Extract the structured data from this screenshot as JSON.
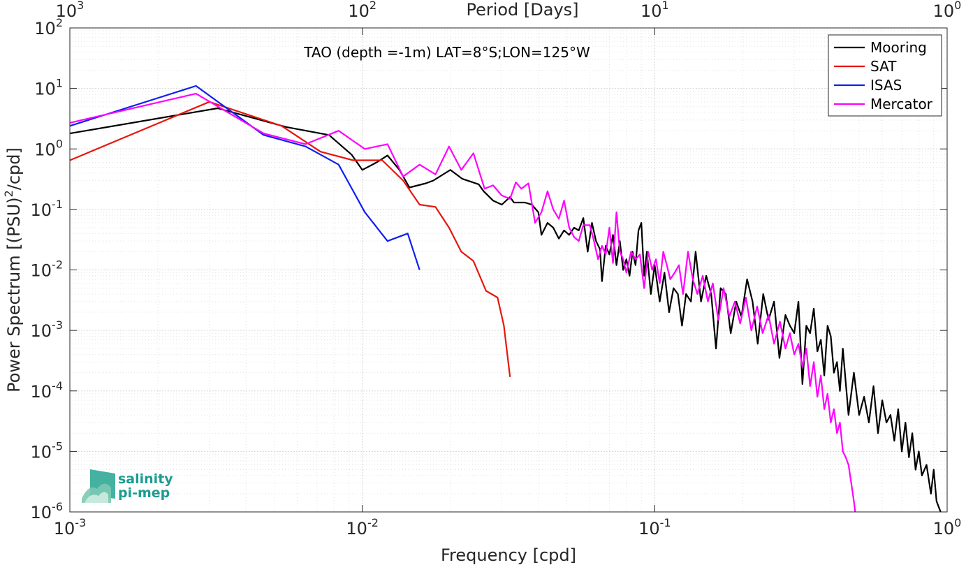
{
  "chart_data": {
    "type": "line",
    "x_scale": "log",
    "y_scale": "log",
    "xlim": [
      0.001,
      1
    ],
    "ylim": [
      1e-06,
      100
    ],
    "xlabel": "Frequency [cpd]",
    "ylabel_parts": [
      "Power Spectrum [(PSU)",
      "2",
      "/cpd]"
    ],
    "top_axis_label": "Period [Days]",
    "annotation": "TAO (depth =-1m) LAT=8°S;LON=125°W",
    "x_ticks": [
      {
        "value": 0.001,
        "base": "10",
        "exp": "-3"
      },
      {
        "value": 0.01,
        "base": "10",
        "exp": "-2"
      },
      {
        "value": 0.1,
        "base": "10",
        "exp": "-1"
      },
      {
        "value": 1,
        "base": "10",
        "exp": "0"
      }
    ],
    "top_ticks": [
      {
        "value": 0.001,
        "base": "10",
        "exp": "3"
      },
      {
        "value": 0.01,
        "base": "10",
        "exp": "2"
      },
      {
        "value": 0.1,
        "base": "10",
        "exp": "1"
      },
      {
        "value": 1,
        "base": "10",
        "exp": "0"
      }
    ],
    "y_ticks": [
      {
        "value": 100,
        "base": "10",
        "exp": "2"
      },
      {
        "value": 10,
        "base": "10",
        "exp": "1"
      },
      {
        "value": 1,
        "base": "10",
        "exp": "0"
      },
      {
        "value": 0.1,
        "base": "10",
        "exp": "-1"
      },
      {
        "value": 0.01,
        "base": "10",
        "exp": "-2"
      },
      {
        "value": 0.001,
        "base": "10",
        "exp": "-3"
      },
      {
        "value": 0.0001,
        "base": "10",
        "exp": "-4"
      },
      {
        "value": 1e-05,
        "base": "10",
        "exp": "-5"
      },
      {
        "value": 1e-06,
        "base": "10",
        "exp": "-6"
      }
    ],
    "grid": "major and minor",
    "legend_position": "top-right",
    "series": [
      {
        "name": "Mooring",
        "color": "#000000",
        "points": [
          [
            0.001,
            1.8
          ],
          [
            0.0032,
            4.7
          ],
          [
            0.0055,
            2.3
          ],
          [
            0.0077,
            1.7
          ],
          [
            0.0092,
            0.8
          ],
          [
            0.01,
            0.45
          ],
          [
            0.0112,
            0.6
          ],
          [
            0.0122,
            0.78
          ],
          [
            0.0134,
            0.45
          ],
          [
            0.0145,
            0.23
          ],
          [
            0.0165,
            0.27
          ],
          [
            0.0175,
            0.3
          ],
          [
            0.02,
            0.45
          ],
          [
            0.022,
            0.32
          ],
          [
            0.025,
            0.26
          ],
          [
            0.026,
            0.2
          ],
          [
            0.028,
            0.14
          ],
          [
            0.03,
            0.12
          ],
          [
            0.032,
            0.16
          ],
          [
            0.033,
            0.13
          ],
          [
            0.036,
            0.13
          ],
          [
            0.038,
            0.12
          ],
          [
            0.04,
            0.09
          ],
          [
            0.041,
            0.038
          ],
          [
            0.043,
            0.06
          ],
          [
            0.045,
            0.05
          ],
          [
            0.047,
            0.033
          ],
          [
            0.049,
            0.045
          ],
          [
            0.051,
            0.038
          ],
          [
            0.053,
            0.05
          ],
          [
            0.055,
            0.045
          ],
          [
            0.057,
            0.072
          ],
          [
            0.059,
            0.02
          ],
          [
            0.061,
            0.06
          ],
          [
            0.063,
            0.03
          ],
          [
            0.065,
            0.022
          ],
          [
            0.066,
            0.0065
          ],
          [
            0.068,
            0.025
          ],
          [
            0.07,
            0.018
          ],
          [
            0.072,
            0.038
          ],
          [
            0.074,
            0.012
          ],
          [
            0.076,
            0.03
          ],
          [
            0.078,
            0.01
          ],
          [
            0.08,
            0.015
          ],
          [
            0.082,
            0.008
          ],
          [
            0.084,
            0.02
          ],
          [
            0.086,
            0.012
          ],
          [
            0.088,
            0.045
          ],
          [
            0.09,
            0.06
          ],
          [
            0.092,
            0.008
          ],
          [
            0.094,
            0.02
          ],
          [
            0.097,
            0.004
          ],
          [
            0.1,
            0.012
          ],
          [
            0.104,
            0.003
          ],
          [
            0.108,
            0.009
          ],
          [
            0.112,
            0.002
          ],
          [
            0.116,
            0.005
          ],
          [
            0.12,
            0.004
          ],
          [
            0.124,
            0.0012
          ],
          [
            0.128,
            0.004
          ],
          [
            0.133,
            0.003
          ],
          [
            0.138,
            0.02
          ],
          [
            0.144,
            0.003
          ],
          [
            0.15,
            0.008
          ],
          [
            0.156,
            0.004
          ],
          [
            0.162,
            0.0005
          ],
          [
            0.168,
            0.005
          ],
          [
            0.175,
            0.004
          ],
          [
            0.182,
            0.0009
          ],
          [
            0.19,
            0.003
          ],
          [
            0.198,
            0.0017
          ],
          [
            0.207,
            0.007
          ],
          [
            0.216,
            0.003
          ],
          [
            0.225,
            0.0006
          ],
          [
            0.235,
            0.004
          ],
          [
            0.245,
            0.0015
          ],
          [
            0.256,
            0.003
          ],
          [
            0.267,
            0.00035
          ],
          [
            0.28,
            0.0018
          ],
          [
            0.29,
            0.0012
          ],
          [
            0.3,
            0.0009
          ],
          [
            0.31,
            0.003
          ],
          [
            0.32,
            0.00013
          ],
          [
            0.33,
            0.0012
          ],
          [
            0.34,
            0.0009
          ],
          [
            0.35,
            0.0023
          ],
          [
            0.36,
            0.00045
          ],
          [
            0.37,
            0.0007
          ],
          [
            0.38,
            0.00018
          ],
          [
            0.39,
            0.0012
          ],
          [
            0.4,
            0.0008
          ],
          [
            0.41,
            0.0002
          ],
          [
            0.42,
            0.0003
          ],
          [
            0.43,
            0.0001
          ],
          [
            0.44,
            0.0005
          ],
          [
            0.46,
            4e-05
          ],
          [
            0.48,
            0.0002
          ],
          [
            0.5,
            4e-05
          ],
          [
            0.52,
            8e-05
          ],
          [
            0.54,
            3e-05
          ],
          [
            0.56,
            0.00012
          ],
          [
            0.58,
            2e-05
          ],
          [
            0.6,
            7e-05
          ],
          [
            0.62,
            3e-05
          ],
          [
            0.64,
            4e-05
          ],
          [
            0.66,
            1.5e-05
          ],
          [
            0.68,
            5e-05
          ],
          [
            0.7,
            1e-05
          ],
          [
            0.72,
            3e-05
          ],
          [
            0.74,
            8e-06
          ],
          [
            0.76,
            2e-05
          ],
          [
            0.78,
            5e-06
          ],
          [
            0.8,
            1e-05
          ],
          [
            0.82,
            4e-06
          ],
          [
            0.85,
            6e-06
          ],
          [
            0.88,
            2e-06
          ],
          [
            0.9,
            5e-06
          ],
          [
            0.92,
            1.5e-06
          ],
          [
            0.95,
            1e-06
          ]
        ]
      },
      {
        "name": "SAT",
        "color": "#e8160c",
        "points": [
          [
            0.001,
            0.65
          ],
          [
            0.003,
            6.0
          ],
          [
            0.0053,
            2.4
          ],
          [
            0.0072,
            0.9
          ],
          [
            0.0093,
            0.65
          ],
          [
            0.0105,
            0.65
          ],
          [
            0.0117,
            0.65
          ],
          [
            0.0138,
            0.3
          ],
          [
            0.0157,
            0.12
          ],
          [
            0.0178,
            0.11
          ],
          [
            0.0198,
            0.05
          ],
          [
            0.0218,
            0.02
          ],
          [
            0.024,
            0.014
          ],
          [
            0.0265,
            0.0045
          ],
          [
            0.029,
            0.0035
          ],
          [
            0.0305,
            0.0012
          ],
          [
            0.032,
            0.00017
          ]
        ]
      },
      {
        "name": "ISAS",
        "color": "#0e1ff0",
        "points": [
          [
            0.001,
            2.4
          ],
          [
            0.0027,
            11.0
          ],
          [
            0.0046,
            1.7
          ],
          [
            0.0064,
            1.1
          ],
          [
            0.0083,
            0.55
          ],
          [
            0.0102,
            0.09
          ],
          [
            0.0122,
            0.03
          ],
          [
            0.0143,
            0.04
          ],
          [
            0.0157,
            0.01
          ]
        ]
      },
      {
        "name": "Mercator",
        "color": "#ff00ff",
        "points": [
          [
            0.001,
            2.7
          ],
          [
            0.0027,
            8.2
          ],
          [
            0.0046,
            1.8
          ],
          [
            0.0064,
            1.2
          ],
          [
            0.0083,
            2.0
          ],
          [
            0.0102,
            1.0
          ],
          [
            0.0122,
            1.2
          ],
          [
            0.0138,
            0.35
          ],
          [
            0.0157,
            0.55
          ],
          [
            0.0178,
            0.38
          ],
          [
            0.0198,
            1.1
          ],
          [
            0.0218,
            0.45
          ],
          [
            0.024,
            0.85
          ],
          [
            0.0262,
            0.22
          ],
          [
            0.028,
            0.25
          ],
          [
            0.03,
            0.17
          ],
          [
            0.032,
            0.15
          ],
          [
            0.0335,
            0.28
          ],
          [
            0.035,
            0.22
          ],
          [
            0.037,
            0.27
          ],
          [
            0.039,
            0.06
          ],
          [
            0.041,
            0.09
          ],
          [
            0.043,
            0.2
          ],
          [
            0.045,
            0.1
          ],
          [
            0.047,
            0.07
          ],
          [
            0.049,
            0.14
          ],
          [
            0.051,
            0.05
          ],
          [
            0.053,
            0.035
          ],
          [
            0.055,
            0.03
          ],
          [
            0.057,
            0.055
          ],
          [
            0.06,
            0.055
          ],
          [
            0.062,
            0.03
          ],
          [
            0.064,
            0.015
          ],
          [
            0.066,
            0.025
          ],
          [
            0.068,
            0.018
          ],
          [
            0.07,
            0.05
          ],
          [
            0.072,
            0.013
          ],
          [
            0.074,
            0.09
          ],
          [
            0.076,
            0.02
          ],
          [
            0.078,
            0.015
          ],
          [
            0.08,
            0.009
          ],
          [
            0.083,
            0.02
          ],
          [
            0.086,
            0.015
          ],
          [
            0.089,
            0.018
          ],
          [
            0.092,
            0.005
          ],
          [
            0.095,
            0.02
          ],
          [
            0.098,
            0.01
          ],
          [
            0.101,
            0.015
          ],
          [
            0.104,
            0.006
          ],
          [
            0.107,
            0.02
          ],
          [
            0.11,
            0.012
          ],
          [
            0.113,
            0.007
          ],
          [
            0.117,
            0.009
          ],
          [
            0.121,
            0.012
          ],
          [
            0.125,
            0.004
          ],
          [
            0.13,
            0.02
          ],
          [
            0.135,
            0.007
          ],
          [
            0.14,
            0.004
          ],
          [
            0.146,
            0.008
          ],
          [
            0.152,
            0.003
          ],
          [
            0.158,
            0.006
          ],
          [
            0.165,
            0.0015
          ],
          [
            0.172,
            0.005
          ],
          [
            0.18,
            0.0017
          ],
          [
            0.188,
            0.003
          ],
          [
            0.196,
            0.0013
          ],
          [
            0.205,
            0.0035
          ],
          [
            0.214,
            0.001
          ],
          [
            0.224,
            0.0025
          ],
          [
            0.234,
            0.0009
          ],
          [
            0.245,
            0.0018
          ],
          [
            0.256,
            0.0006
          ],
          [
            0.268,
            0.0014
          ],
          [
            0.28,
            0.0005
          ],
          [
            0.29,
            0.0009
          ],
          [
            0.3,
            0.0004
          ],
          [
            0.31,
            0.0006
          ],
          [
            0.32,
            0.00025
          ],
          [
            0.33,
            0.0005
          ],
          [
            0.34,
            0.00012
          ],
          [
            0.35,
            0.0003
          ],
          [
            0.36,
            8e-05
          ],
          [
            0.37,
            0.00018
          ],
          [
            0.38,
            5e-05
          ],
          [
            0.39,
            9e-05
          ],
          [
            0.4,
            3e-05
          ],
          [
            0.41,
            5e-05
          ],
          [
            0.42,
            2e-05
          ],
          [
            0.43,
            3e-05
          ],
          [
            0.44,
            1e-05
          ],
          [
            0.45,
            8e-06
          ],
          [
            0.46,
            6e-06
          ],
          [
            0.47,
            3e-06
          ],
          [
            0.48,
            1.5e-06
          ],
          [
            0.485,
            1e-06
          ]
        ]
      }
    ]
  },
  "logo": {
    "line1": "salinity",
    "line2": "pi-mep"
  }
}
